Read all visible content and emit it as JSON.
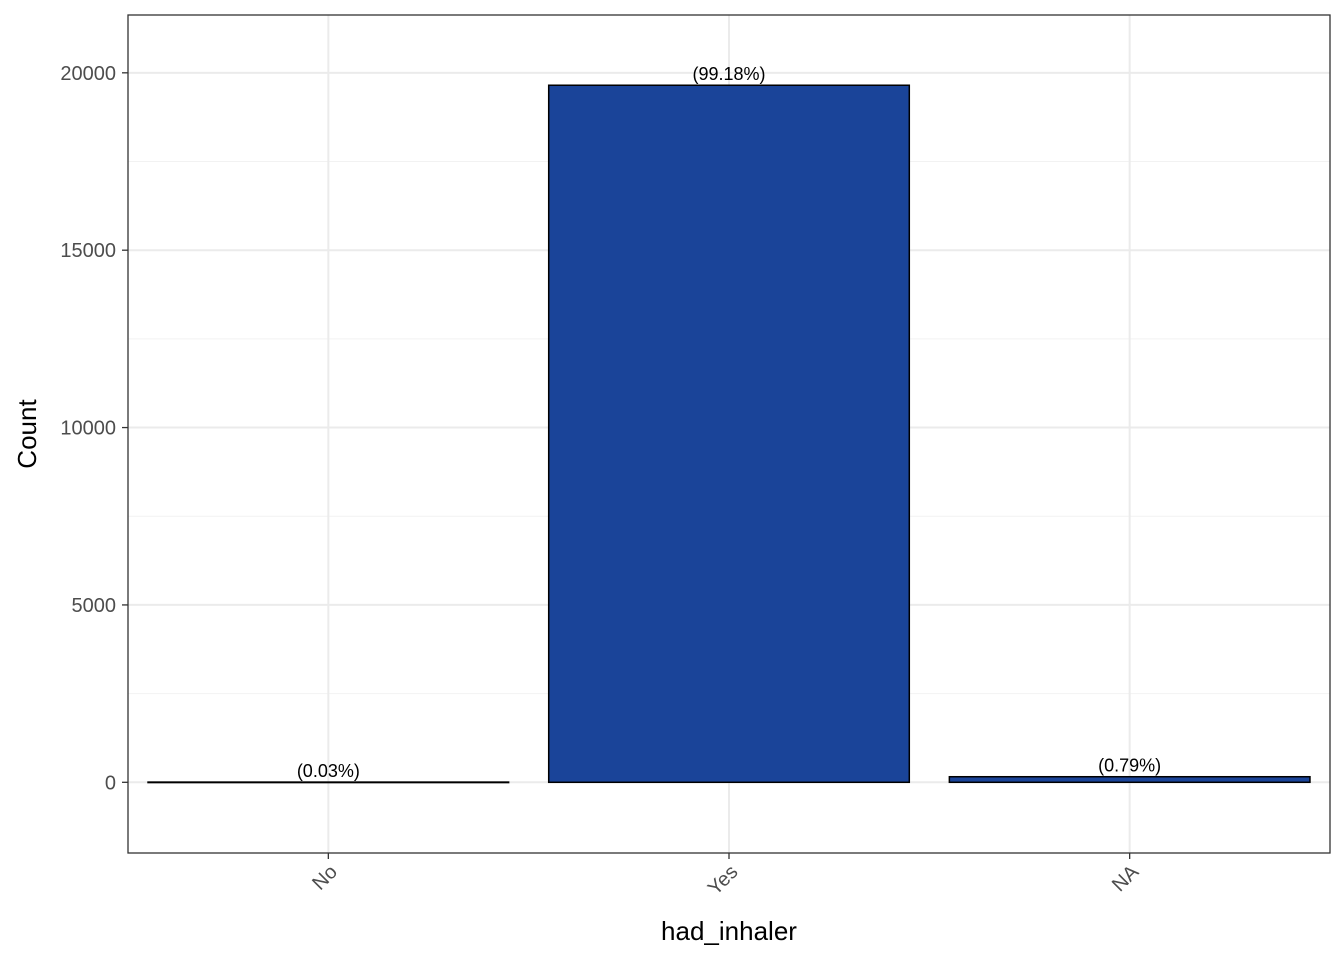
{
  "chart_data": {
    "type": "bar",
    "categories": [
      "No",
      "Yes",
      "NA"
    ],
    "values": [
      6,
      19650,
      157
    ],
    "bar_labels": [
      "(0.03%)",
      "(99.18%)",
      "(0.79%)"
    ],
    "xlabel": "had_inhaler",
    "ylabel": "Count",
    "ylim": [
      -1993,
      21630
    ],
    "yticks": [
      0,
      5000,
      10000,
      15000,
      20000
    ],
    "ytick_labels": [
      "0",
      "5000",
      "10000",
      "15000",
      "20000"
    ],
    "grid": true,
    "legend": "none",
    "colors": {
      "bar_fill": "#1a4499",
      "bar_stroke": "#000000",
      "grid_major": "#ebebeb",
      "grid_minor": "#f2f2f2",
      "panel_border": "#333333",
      "tick_text": "#4d4d4d"
    }
  }
}
